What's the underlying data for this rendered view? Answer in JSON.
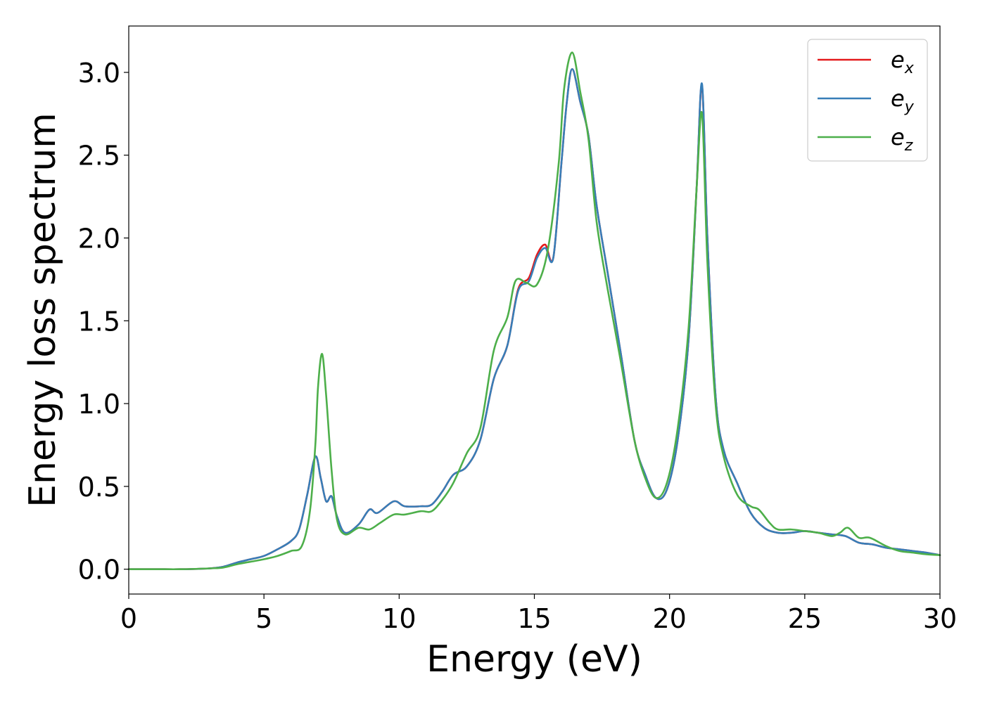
{
  "chart_data": {
    "type": "line",
    "xlabel": "Energy (eV)",
    "ylabel": "Energy loss spectrum",
    "xlim": [
      0,
      30
    ],
    "ylim": [
      -0.15,
      3.28
    ],
    "xticks": [
      "0",
      "5",
      "10",
      "15",
      "20",
      "25",
      "30"
    ],
    "yticks": [
      "0.0",
      "0.5",
      "1.0",
      "1.5",
      "2.0",
      "2.5",
      "3.0"
    ],
    "grid": false,
    "legend_position": "top-right",
    "series": [
      {
        "name": "e_x",
        "legend_base": "e",
        "legend_sub": "x",
        "color": "#e41a1c",
        "x": [
          0,
          1,
          2,
          3,
          3.5,
          4,
          4.5,
          5,
          5.5,
          6,
          6.3,
          6.6,
          6.9,
          7.1,
          7.3,
          7.5,
          7.7,
          8,
          8.5,
          8.9,
          9.2,
          9.8,
          10.2,
          10.8,
          11.2,
          11.6,
          12,
          12.5,
          13,
          13.5,
          14,
          14.4,
          14.8,
          15.1,
          15.4,
          15.7,
          16,
          16.2,
          16.4,
          16.7,
          17,
          17.3,
          17.7,
          18.2,
          18.7,
          19.1,
          19.5,
          19.9,
          20.3,
          20.7,
          21,
          21.2,
          21.4,
          21.7,
          22,
          22.5,
          23,
          23.5,
          24,
          24.5,
          25,
          25.5,
          26,
          26.5,
          27,
          27.5,
          28,
          28.5,
          29,
          29.5,
          30
        ],
        "y": [
          0.0,
          0.0,
          0.0,
          0.005,
          0.015,
          0.04,
          0.06,
          0.08,
          0.12,
          0.17,
          0.24,
          0.45,
          0.68,
          0.55,
          0.41,
          0.44,
          0.32,
          0.22,
          0.27,
          0.36,
          0.34,
          0.41,
          0.38,
          0.38,
          0.39,
          0.47,
          0.57,
          0.62,
          0.78,
          1.15,
          1.35,
          1.69,
          1.76,
          1.9,
          1.96,
          1.88,
          2.45,
          2.82,
          3.02,
          2.82,
          2.62,
          2.2,
          1.8,
          1.3,
          0.78,
          0.57,
          0.43,
          0.48,
          0.78,
          1.38,
          2.3,
          2.92,
          2.0,
          1.05,
          0.72,
          0.52,
          0.34,
          0.25,
          0.22,
          0.22,
          0.23,
          0.22,
          0.21,
          0.2,
          0.16,
          0.15,
          0.13,
          0.12,
          0.11,
          0.1,
          0.085
        ]
      },
      {
        "name": "e_y",
        "legend_base": "e",
        "legend_sub": "y",
        "color": "#377eb8",
        "x": [
          0,
          1,
          2,
          3,
          3.5,
          4,
          4.5,
          5,
          5.5,
          6,
          6.3,
          6.6,
          6.9,
          7.1,
          7.3,
          7.5,
          7.7,
          8,
          8.5,
          8.9,
          9.2,
          9.8,
          10.2,
          10.8,
          11.2,
          11.6,
          12,
          12.5,
          13,
          13.5,
          14,
          14.4,
          14.8,
          15.1,
          15.4,
          15.7,
          16,
          16.2,
          16.4,
          16.7,
          17,
          17.3,
          17.7,
          18.2,
          18.7,
          19.1,
          19.5,
          19.9,
          20.3,
          20.7,
          21,
          21.2,
          21.4,
          21.7,
          22,
          22.5,
          23,
          23.5,
          24,
          24.5,
          25,
          25.5,
          26,
          26.5,
          27,
          27.5,
          28,
          28.5,
          29,
          29.5,
          30
        ],
        "y": [
          0.0,
          0.0,
          0.0,
          0.005,
          0.015,
          0.04,
          0.06,
          0.08,
          0.12,
          0.17,
          0.24,
          0.45,
          0.68,
          0.55,
          0.41,
          0.44,
          0.32,
          0.22,
          0.27,
          0.36,
          0.34,
          0.41,
          0.38,
          0.38,
          0.39,
          0.47,
          0.57,
          0.62,
          0.78,
          1.15,
          1.35,
          1.68,
          1.74,
          1.88,
          1.94,
          1.88,
          2.45,
          2.82,
          3.02,
          2.82,
          2.62,
          2.2,
          1.8,
          1.3,
          0.78,
          0.57,
          0.43,
          0.48,
          0.78,
          1.38,
          2.3,
          2.93,
          2.0,
          1.05,
          0.72,
          0.52,
          0.34,
          0.25,
          0.22,
          0.22,
          0.23,
          0.22,
          0.21,
          0.2,
          0.16,
          0.15,
          0.13,
          0.12,
          0.11,
          0.1,
          0.085
        ]
      },
      {
        "name": "e_z",
        "legend_base": "e",
        "legend_sub": "z",
        "color": "#4daf4a",
        "x": [
          0,
          1,
          2,
          3,
          3.5,
          4,
          4.5,
          5,
          5.5,
          6,
          6.4,
          6.7,
          6.9,
          7.0,
          7.15,
          7.3,
          7.5,
          7.7,
          8,
          8.5,
          8.9,
          9.3,
          9.8,
          10.2,
          10.8,
          11.2,
          11.6,
          12,
          12.5,
          13,
          13.5,
          14,
          14.3,
          14.7,
          15.1,
          15.5,
          15.9,
          16.1,
          16.4,
          16.7,
          17,
          17.3,
          17.7,
          18.2,
          18.7,
          19.1,
          19.5,
          19.9,
          20.3,
          20.7,
          21,
          21.2,
          21.4,
          21.7,
          22,
          22.5,
          23,
          23.3,
          23.7,
          24,
          24.5,
          25,
          25.5,
          26,
          26.3,
          26.6,
          27,
          27.4,
          28,
          28.5,
          29,
          29.5,
          30
        ],
        "y": [
          0.0,
          0.0,
          0.0,
          0.005,
          0.01,
          0.03,
          0.045,
          0.06,
          0.08,
          0.11,
          0.14,
          0.35,
          0.75,
          1.1,
          1.3,
          1.05,
          0.6,
          0.3,
          0.21,
          0.25,
          0.24,
          0.28,
          0.33,
          0.33,
          0.35,
          0.35,
          0.42,
          0.52,
          0.7,
          0.85,
          1.32,
          1.52,
          1.74,
          1.73,
          1.72,
          1.93,
          2.45,
          2.9,
          3.12,
          2.88,
          2.6,
          2.1,
          1.7,
          1.25,
          0.78,
          0.55,
          0.43,
          0.52,
          0.85,
          1.45,
          2.3,
          2.75,
          1.85,
          1.0,
          0.68,
          0.45,
          0.38,
          0.36,
          0.28,
          0.24,
          0.24,
          0.23,
          0.22,
          0.2,
          0.22,
          0.25,
          0.19,
          0.19,
          0.14,
          0.11,
          0.1,
          0.09,
          0.085
        ]
      }
    ]
  }
}
